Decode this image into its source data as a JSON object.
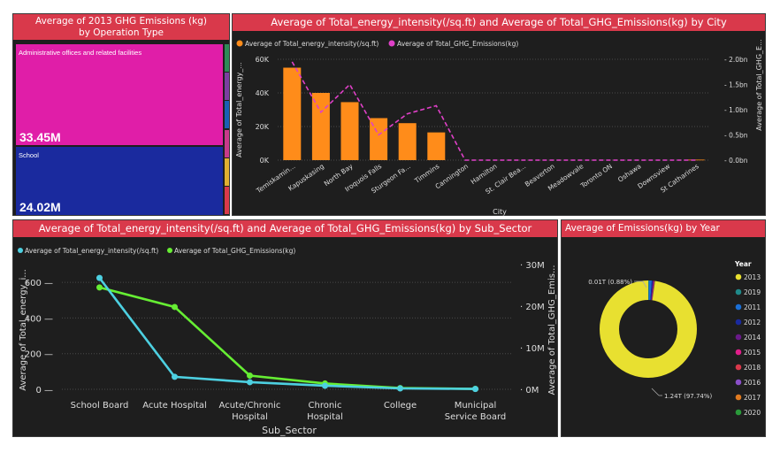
{
  "treemap": {
    "title": "Average of 2013 GHG Emissions (kg) by Operation Type",
    "items": [
      {
        "label": "Administrative offices and related facilities",
        "value": "33.45M",
        "color": "#e01ea8"
      },
      {
        "label": "School",
        "value": "24.02M",
        "color": "#1a2a9e"
      }
    ],
    "strip_colors": [
      "#2e8b57",
      "#7b3fa0",
      "#1a5fb4",
      "#c83a8a",
      "#e0b030",
      "#d9394b"
    ]
  },
  "city_chart": {
    "title": "Average of Total_energy_intensity(/sq.ft) and Average of Total_GHG_Emissions(kg) by City",
    "chart_data": {
      "type": "bar",
      "categories": [
        "Temiskamin...",
        "Kapuskasing",
        "North Bay",
        "Iroquois Falls",
        "Sturgeon Fa...",
        "Timmins",
        "Cannington",
        "Hamilton",
        "St. Clair Bea...",
        "Beaverton",
        "Meadowvale",
        "Toronto ON",
        "Oshawa",
        "Downsview",
        "St Catharines"
      ],
      "series": [
        {
          "name": "Average of Total_energy_intensity(/sq.ft)",
          "type": "bar",
          "axis": "left",
          "color": "#ff8c1a",
          "values": [
            55000,
            40000,
            34500,
            25000,
            22000,
            16500,
            0,
            0,
            0,
            0,
            0,
            0,
            0,
            0,
            300
          ]
        },
        {
          "name": "Average of Total_GHG_Emissions(kg)",
          "type": "line",
          "axis": "right",
          "color": "#e040c8",
          "values": [
            1.95,
            0.95,
            1.5,
            0.5,
            0.92,
            1.08,
            0,
            0,
            0,
            0,
            0,
            0,
            0,
            0,
            0
          ]
        }
      ],
      "xlabel": "City",
      "ylabel": "Average of Total_energy_...",
      "y2label": "Average of Total_GHG_E...",
      "ylim": [
        0,
        60000
      ],
      "y2lim": [
        0,
        2.0
      ],
      "yticks": [
        "0K",
        "20K",
        "40K",
        "60K"
      ],
      "y2ticks": [
        "0.0bn",
        "0.5bn",
        "1.0bn",
        "1.5bn",
        "2.0bn"
      ]
    }
  },
  "sector_chart": {
    "title": "Average of Total_energy_intensity(/sq.ft) and Average of Total_GHG_Emissions(kg) by Sub_Sector",
    "chart_data": {
      "type": "line",
      "categories": [
        "School Board",
        "Acute Hospital",
        "Acute/Chronic Hospital",
        "Chronic Hospital",
        "College",
        "Municipal Service Board"
      ],
      "category_lines": [
        [
          "School Board"
        ],
        [
          "Acute Hospital"
        ],
        [
          "Acute/Chronic",
          "Hospital"
        ],
        [
          "Chronic",
          "Hospital"
        ],
        [
          "College"
        ],
        [
          "Municipal",
          "Service Board"
        ]
      ],
      "series": [
        {
          "name": "Average of Total_energy_intensity(/sq.ft)",
          "axis": "left",
          "color": "#4dd0e1",
          "values": [
            625,
            70,
            40,
            20,
            5,
            2
          ]
        },
        {
          "name": "Average of Total_GHG_Emissions(kg)",
          "axis": "right",
          "color": "#66ee33",
          "values": [
            24.5,
            19.8,
            3.3,
            1.4,
            0.3,
            0.1
          ]
        }
      ],
      "xlabel": "Sub_Sector",
      "ylabel": "Average of Total_energy_i...",
      "y2label": "Average of Total_GHG_Emis...",
      "ylim": [
        0,
        700
      ],
      "y2lim": [
        0,
        30
      ],
      "yticks": [
        "0",
        "200",
        "400",
        "600"
      ],
      "y2ticks": [
        "0M",
        "10M",
        "20M",
        "30M"
      ]
    }
  },
  "donut_chart": {
    "title": "Average of Emissions(kg) by Year",
    "chart_data": {
      "type": "pie",
      "legend_title": "Year",
      "slices": [
        {
          "label": "2013",
          "value": 97.74,
          "color": "#e8e030"
        },
        {
          "label": "2019",
          "value": 0.3,
          "color": "#1f8a8a"
        },
        {
          "label": "2011",
          "value": 0.88,
          "color": "#1a6fd6"
        },
        {
          "label": "2012",
          "value": 0.4,
          "color": "#1a2a9e"
        },
        {
          "label": "2014",
          "value": 0.25,
          "color": "#6a1a8a"
        },
        {
          "label": "2015",
          "value": 0.15,
          "color": "#e01e8a"
        },
        {
          "label": "2018",
          "value": 0.1,
          "color": "#d9394b"
        },
        {
          "label": "2016",
          "value": 0.08,
          "color": "#8a4fc8"
        },
        {
          "label": "2017",
          "value": 0.05,
          "color": "#e07a20"
        },
        {
          "label": "2020",
          "value": 0.05,
          "color": "#2a9a3a"
        }
      ],
      "annotations": [
        "0.01T (0.88%)",
        "1.24T (97.74%)"
      ]
    }
  }
}
